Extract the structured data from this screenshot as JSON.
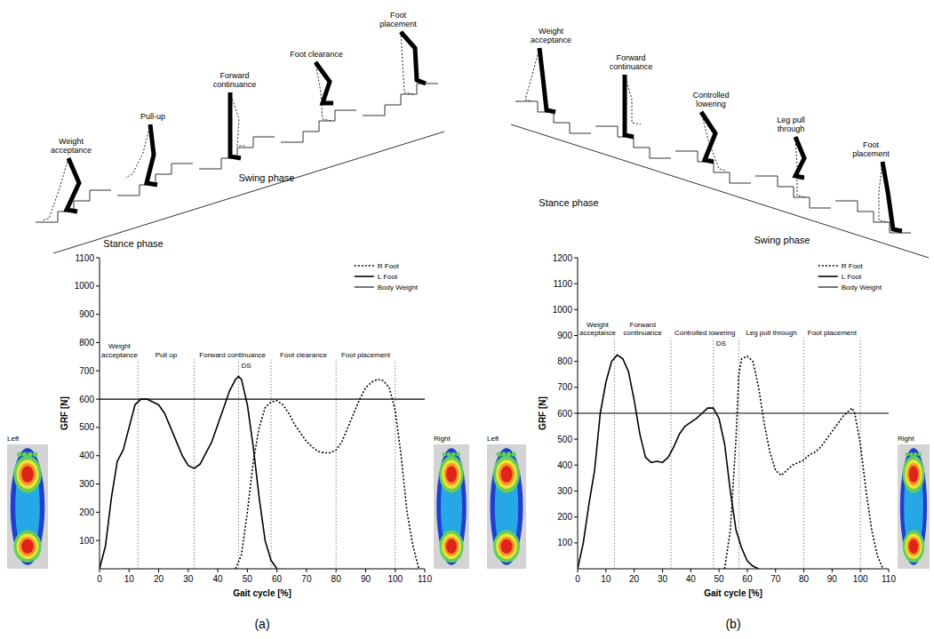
{
  "panel_labels": [
    "(a)",
    "(b)"
  ],
  "diagrams": [
    {
      "phases": [
        "Weight acceptance",
        "Pull-up",
        "Forward continuance",
        "Foot clearance",
        "Foot placement"
      ],
      "stance_label": "Stance phase",
      "swing_label": "Swing phase"
    },
    {
      "phases": [
        "Weight acceptance",
        "Forward continuance",
        "Controlled lowering",
        "Leg pull through",
        "Foot placement"
      ],
      "stance_label": "Stance phase",
      "swing_label": "Swing phase"
    }
  ],
  "pressure_maps": [
    {
      "left_label": "Left",
      "right_label": "Right"
    },
    {
      "left_label": "Left",
      "right_label": "Right"
    }
  ],
  "chart_data": [
    {
      "type": "line",
      "x_label": "Gait cycle [%]",
      "y_label": "GRF [N]",
      "xlim": [
        0,
        110
      ],
      "xticks": [
        0,
        10,
        20,
        30,
        40,
        50,
        60,
        70,
        80,
        90,
        100,
        110
      ],
      "ylim": [
        0,
        1100
      ],
      "yticks": [
        100,
        200,
        300,
        400,
        500,
        600,
        700,
        800,
        900,
        1000,
        1100
      ],
      "legend": "upper right",
      "series": [
        {
          "name": "R Foot",
          "color": "#000000",
          "line_style": "dotted",
          "x": [
            46,
            48,
            50,
            52,
            54,
            56,
            58,
            60,
            62,
            64,
            66,
            68,
            70,
            72,
            74,
            76,
            78,
            80,
            82,
            84,
            86,
            88,
            90,
            92,
            94,
            96,
            98,
            100,
            102,
            104,
            106,
            108
          ],
          "values": [
            0,
            50,
            200,
            380,
            500,
            570,
            590,
            595,
            580,
            550,
            510,
            480,
            450,
            430,
            415,
            410,
            410,
            420,
            450,
            500,
            550,
            600,
            640,
            660,
            670,
            665,
            640,
            560,
            400,
            200,
            80,
            0
          ]
        },
        {
          "name": "L Foot",
          "color": "#000000",
          "line_style": "solid",
          "x": [
            0,
            2,
            4,
            6,
            8,
            10,
            12,
            14,
            16,
            18,
            20,
            22,
            24,
            26,
            28,
            30,
            32,
            34,
            36,
            38,
            40,
            42,
            44,
            46,
            47,
            48,
            50,
            52,
            54,
            56,
            58,
            60
          ],
          "values": [
            0,
            80,
            250,
            380,
            420,
            500,
            580,
            600,
            600,
            590,
            580,
            550,
            500,
            450,
            400,
            365,
            355,
            370,
            410,
            450,
            510,
            570,
            630,
            670,
            680,
            670,
            580,
            430,
            250,
            100,
            30,
            0
          ]
        },
        {
          "name": "Body Weight",
          "color": "#000000",
          "line_style": "solid",
          "x": [
            0,
            110
          ],
          "values": [
            600,
            600
          ]
        }
      ],
      "phases": [
        {
          "label": "Weight acceptance",
          "start": 0,
          "end": 13
        },
        {
          "label": "Pull up",
          "start": 13,
          "end": 32
        },
        {
          "label": "Forward continuance",
          "start": 32,
          "end": 58
        },
        {
          "label": "Foot clearance",
          "start": 58,
          "end": 80
        },
        {
          "label": "Foot placement",
          "start": 80,
          "end": 100
        }
      ],
      "annotations": [
        {
          "text": "DS",
          "x": 47
        }
      ]
    },
    {
      "type": "line",
      "x_label": "Gait cycle [%]",
      "y_label": "GRF [N]",
      "xlim": [
        0,
        110
      ],
      "xticks": [
        0,
        10,
        20,
        30,
        40,
        50,
        60,
        70,
        80,
        90,
        100,
        110
      ],
      "ylim": [
        0,
        1200
      ],
      "yticks": [
        100,
        200,
        300,
        400,
        500,
        600,
        700,
        800,
        900,
        1000,
        1100,
        1200
      ],
      "legend": "upper right",
      "series": [
        {
          "name": "R Foot",
          "color": "#000000",
          "line_style": "dotted",
          "x": [
            52,
            54,
            56,
            57,
            58,
            60,
            62,
            64,
            66,
            68,
            70,
            72,
            74,
            76,
            78,
            80,
            82,
            84,
            86,
            88,
            90,
            92,
            94,
            96,
            97,
            98,
            100,
            102,
            104,
            106,
            108
          ],
          "values": [
            0,
            150,
            500,
            750,
            810,
            820,
            800,
            700,
            560,
            450,
            380,
            360,
            380,
            400,
            410,
            420,
            440,
            450,
            470,
            500,
            530,
            560,
            590,
            610,
            620,
            600,
            480,
            300,
            150,
            50,
            0
          ]
        },
        {
          "name": "L Foot",
          "color": "#000000",
          "line_style": "solid",
          "x": [
            0,
            2,
            4,
            6,
            8,
            10,
            12,
            14,
            16,
            18,
            20,
            22,
            24,
            26,
            28,
            30,
            32,
            34,
            36,
            38,
            40,
            42,
            44,
            46,
            48,
            50,
            52,
            54,
            56,
            58,
            60,
            62,
            64
          ],
          "values": [
            0,
            100,
            250,
            380,
            600,
            720,
            800,
            825,
            810,
            760,
            650,
            520,
            430,
            410,
            415,
            410,
            430,
            470,
            520,
            550,
            565,
            580,
            600,
            620,
            620,
            580,
            480,
            300,
            150,
            80,
            30,
            10,
            0
          ]
        },
        {
          "name": "Body Weight",
          "color": "#000000",
          "line_style": "solid",
          "x": [
            0,
            110
          ],
          "values": [
            600,
            600
          ]
        }
      ],
      "phases": [
        {
          "label": "Weight acceptance",
          "start": 0,
          "end": 13
        },
        {
          "label": "Forward continuance",
          "start": 13,
          "end": 33
        },
        {
          "label": "Controlled lowering",
          "start": 33,
          "end": 57
        },
        {
          "label": "Leg pull through",
          "start": 57,
          "end": 80
        },
        {
          "label": "Foot placement",
          "start": 80,
          "end": 100
        }
      ],
      "annotations": [
        {
          "text": "DS",
          "x": 48
        }
      ]
    }
  ]
}
